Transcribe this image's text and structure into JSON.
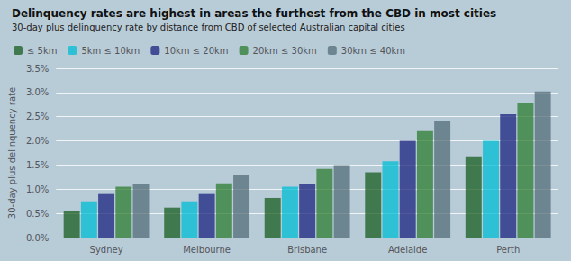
{
  "chart_data": {
    "type": "bar",
    "title": "Delinquency rates are highest in areas the furthest from the CBD in most cities",
    "subtitle": "30-day plus delinquency rate by distance from CBD of selected Australian capital cities",
    "ylabel": "30-day plus delinquency rate",
    "categories": [
      "Sydney",
      "Melbourne",
      "Brisbane",
      "Adelaide",
      "Perth"
    ],
    "series": [
      {
        "name": "≤ 5km",
        "color": "#1a5e20",
        "values": [
          0.55,
          0.62,
          0.82,
          1.35,
          1.68
        ]
      },
      {
        "name": "5km ≤ 10km",
        "color": "#00bcd4",
        "values": [
          0.75,
          0.75,
          1.05,
          1.58,
          2.0
        ]
      },
      {
        "name": "10km ≤ 20km",
        "color": "#1a237e",
        "values": [
          0.9,
          0.9,
          1.1,
          2.0,
          2.55
        ]
      },
      {
        "name": "20km ≤ 30km",
        "color": "#2e7d32",
        "values": [
          1.05,
          1.12,
          1.42,
          2.2,
          2.78
        ]
      },
      {
        "name": "30km ≤ 40km",
        "color": "#546e7a",
        "values": [
          1.1,
          1.3,
          1.5,
          2.42,
          3.02
        ]
      }
    ],
    "ylim": [
      0,
      3.5
    ],
    "yticks": [
      {
        "value": 0.0,
        "label": "0.0%"
      },
      {
        "value": 0.5,
        "label": "0.5%"
      },
      {
        "value": 1.0,
        "label": "1.0%"
      },
      {
        "value": 1.5,
        "label": "1.5%"
      },
      {
        "value": 2.0,
        "label": "2.0%"
      },
      {
        "value": 2.5,
        "label": "2.5%"
      },
      {
        "value": 3.0,
        "label": "3.0%"
      },
      {
        "value": 3.5,
        "label": "3.5%"
      }
    ],
    "grid": true,
    "legend": "upper left"
  }
}
